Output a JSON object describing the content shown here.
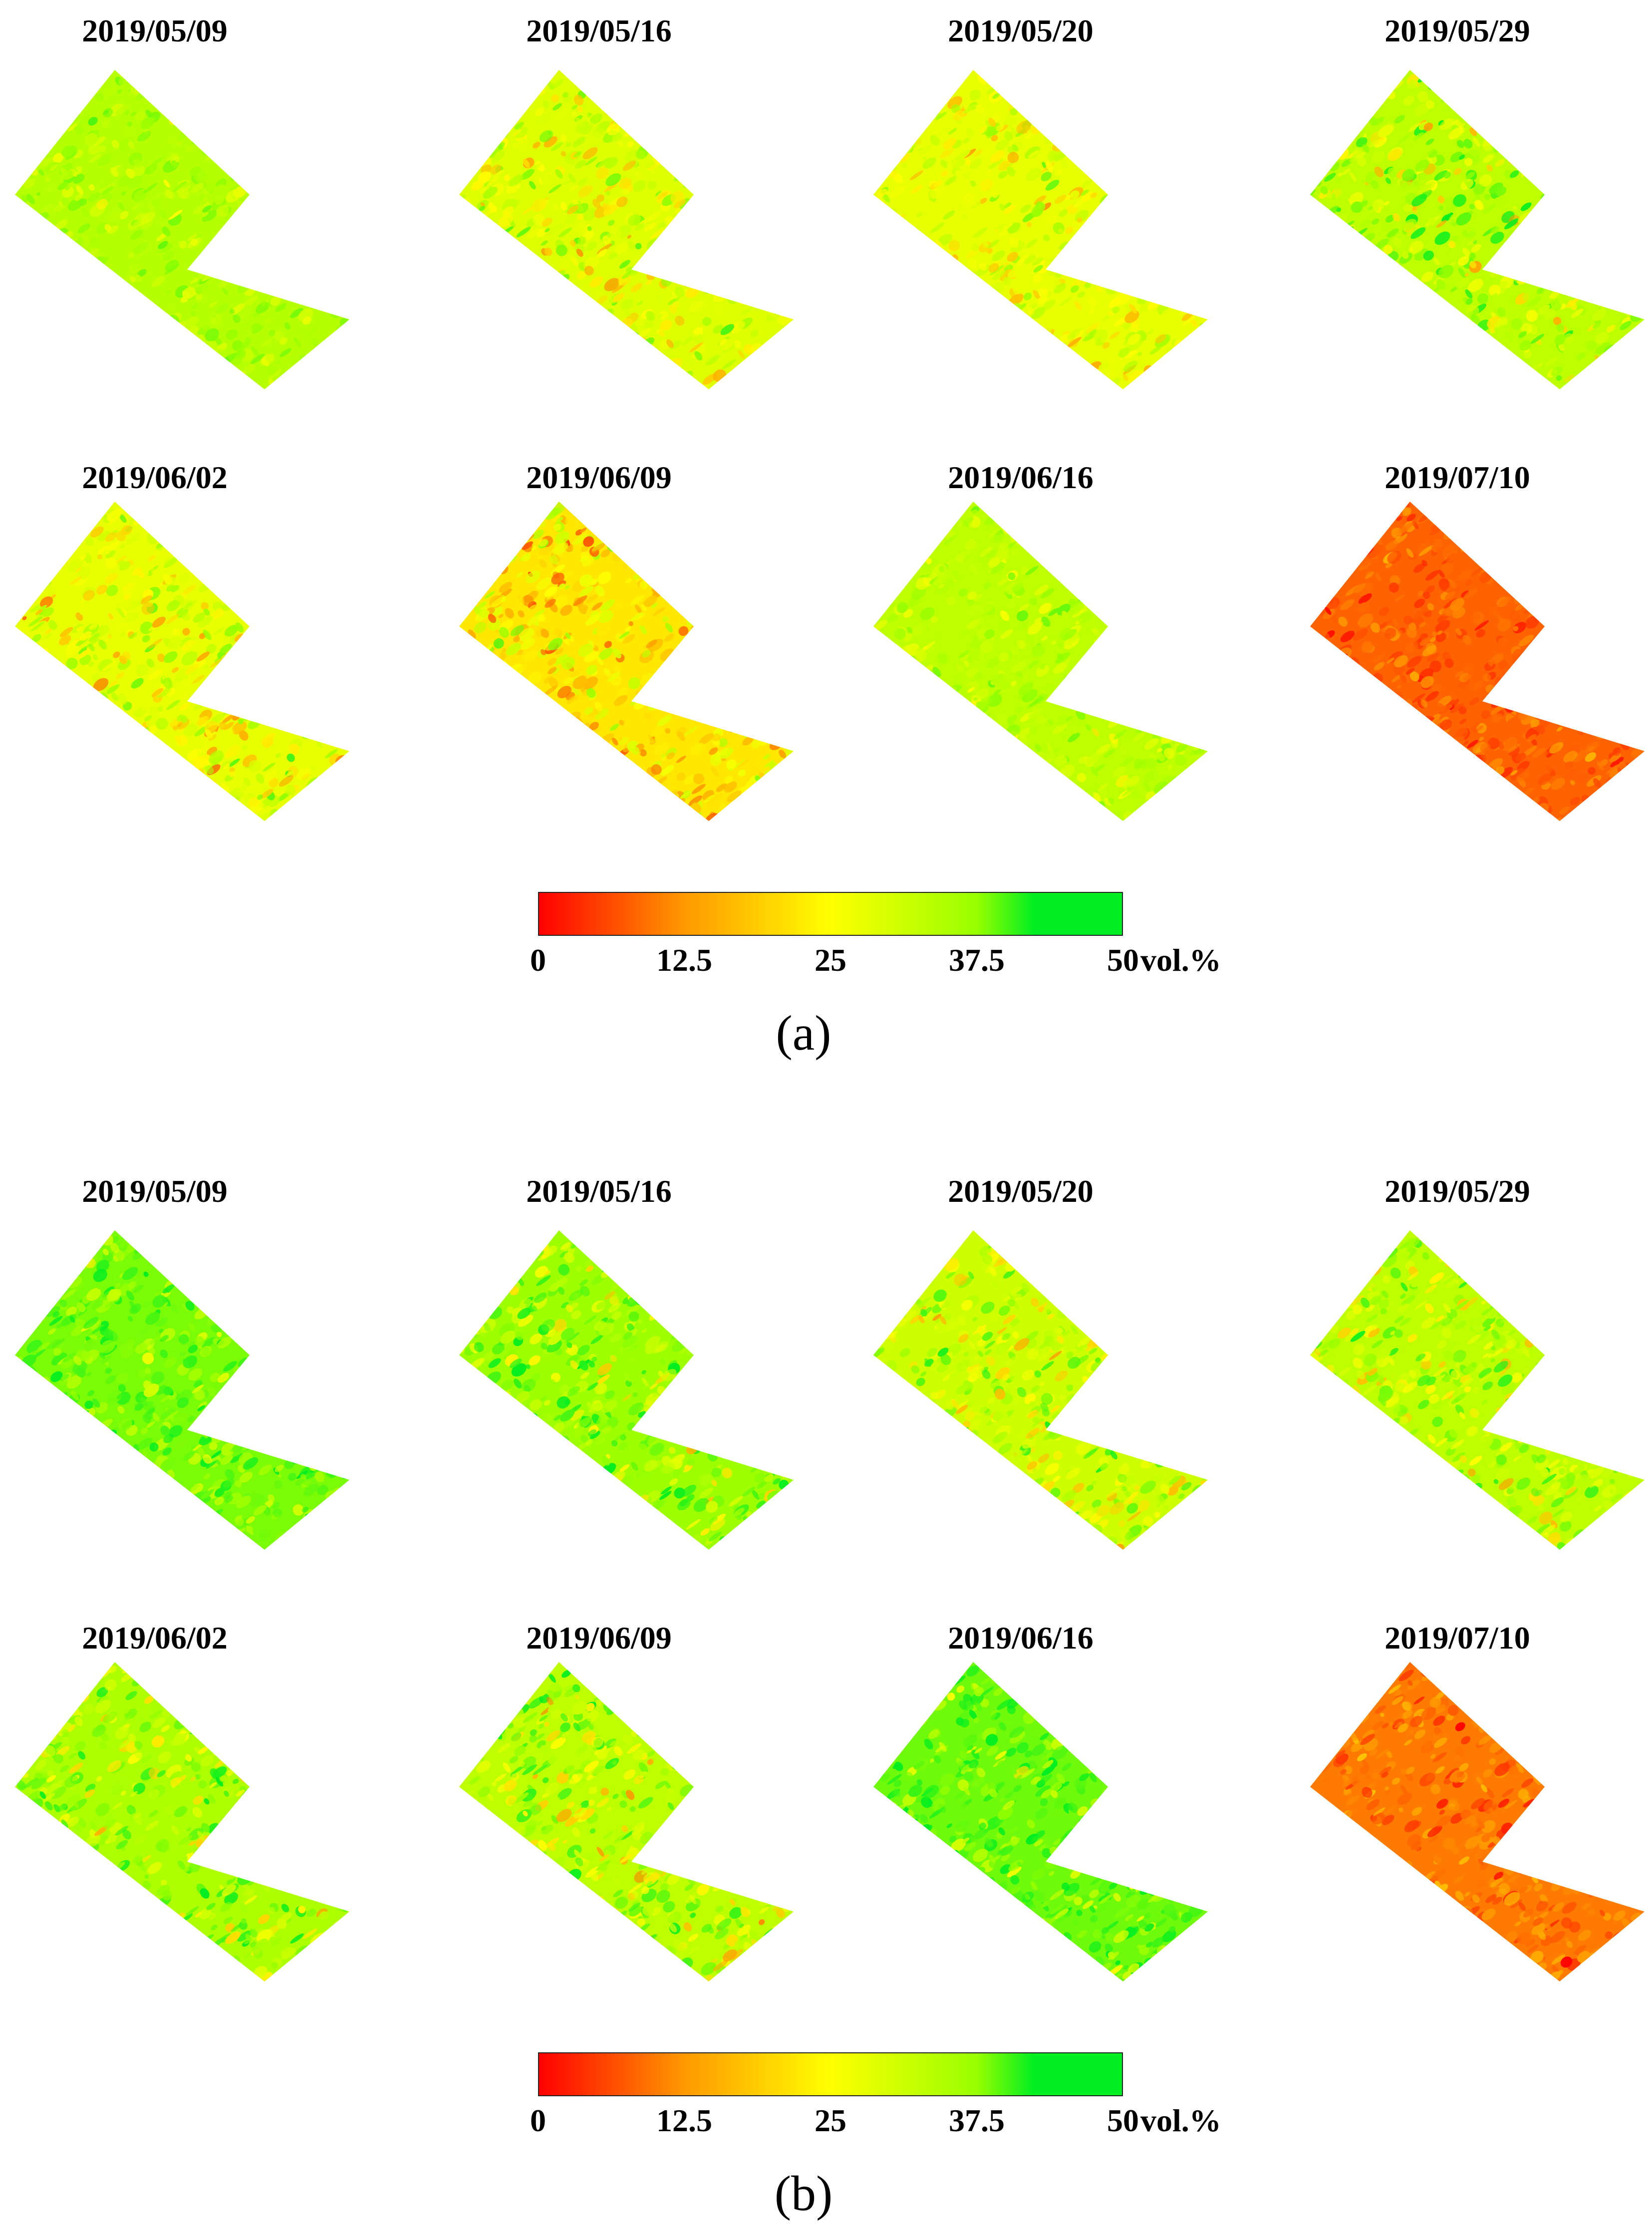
{
  "panels": [
    {
      "label": "(a)",
      "maps": [
        {
          "date": "2019/05/09",
          "mean_vol_pct": 34,
          "spread": 4
        },
        {
          "date": "2019/05/16",
          "mean_vol_pct": 29,
          "spread": 7
        },
        {
          "date": "2019/05/20",
          "mean_vol_pct": 28,
          "spread": 6
        },
        {
          "date": "2019/05/29",
          "mean_vol_pct": 33,
          "spread": 8
        },
        {
          "date": "2019/06/02",
          "mean_vol_pct": 28,
          "spread": 7
        },
        {
          "date": "2019/06/09",
          "mean_vol_pct": 22,
          "spread": 8
        },
        {
          "date": "2019/06/16",
          "mean_vol_pct": 33,
          "spread": 4
        },
        {
          "date": "2019/07/10",
          "mean_vol_pct": 8,
          "spread": 3
        }
      ],
      "colorbar": {
        "ticks": [
          "0",
          "12.5",
          "25",
          "37.5",
          "50"
        ],
        "unit": "vol.%",
        "min": 0,
        "max": 50
      }
    },
    {
      "label": "(b)",
      "maps": [
        {
          "date": "2019/05/09",
          "mean_vol_pct": 40,
          "spread": 6
        },
        {
          "date": "2019/05/16",
          "mean_vol_pct": 37,
          "spread": 9
        },
        {
          "date": "2019/05/20",
          "mean_vol_pct": 31,
          "spread": 8
        },
        {
          "date": "2019/05/29",
          "mean_vol_pct": 33,
          "spread": 8
        },
        {
          "date": "2019/06/02",
          "mean_vol_pct": 35,
          "spread": 8
        },
        {
          "date": "2019/06/09",
          "mean_vol_pct": 33,
          "spread": 9
        },
        {
          "date": "2019/06/16",
          "mean_vol_pct": 41,
          "spread": 7
        },
        {
          "date": "2019/07/10",
          "mean_vol_pct": 10,
          "spread": 4
        }
      ],
      "colorbar": {
        "ticks": [
          "0",
          "12.5",
          "25",
          "37.5",
          "50"
        ],
        "unit": "vol.%",
        "min": 0,
        "max": 50
      }
    }
  ],
  "colors": {
    "low": "#ff0000",
    "mid_low": "#ff9900",
    "mid": "#ffff00",
    "mid_high": "#99ff00",
    "high": "#00ee22"
  }
}
